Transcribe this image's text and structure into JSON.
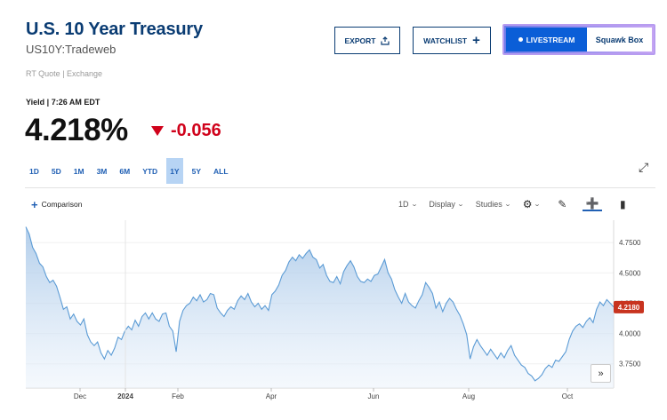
{
  "header": {
    "title": "U.S. 10 Year Treasury",
    "symbol": "US10Y:Tradeweb",
    "quote_source": "RT Quote | Exchange"
  },
  "actions": {
    "export_label": "EXPORT",
    "watchlist_label": "WATCHLIST",
    "livestream_label": "LIVESTREAM",
    "squawk_label": "Squawk Box"
  },
  "quote": {
    "yield_label": "Yield | 7:26 AM EDT",
    "price": "4.218%",
    "change": "-0.056",
    "change_color": "#d0021b"
  },
  "ranges": [
    "1D",
    "5D",
    "1M",
    "3M",
    "6M",
    "YTD",
    "1Y",
    "5Y",
    "ALL"
  ],
  "active_range": "1Y",
  "toolbar": {
    "comparison_label": "Comparison",
    "interval_label": "1D",
    "display_label": "Display",
    "studies_label": "Studies"
  },
  "chart_data": {
    "type": "area",
    "x_tick_labels": [
      "Dec",
      "2024",
      "Feb",
      "Apr",
      "Jun",
      "Aug",
      "Oct"
    ],
    "y_tick_labels": [
      "4.7500",
      "4.5000",
      "4.2500",
      "4.0000",
      "3.7500"
    ],
    "ylim": [
      3.55,
      4.92
    ],
    "last_value_label": "4.2180",
    "series": [
      {
        "color": "#5b9bd5",
        "values": [
          4.88,
          4.82,
          4.71,
          4.66,
          4.58,
          4.55,
          4.47,
          4.42,
          4.44,
          4.39,
          4.3,
          4.2,
          4.22,
          4.12,
          4.16,
          4.1,
          4.07,
          4.12,
          3.99,
          3.93,
          3.9,
          3.93,
          3.84,
          3.79,
          3.86,
          3.82,
          3.88,
          3.97,
          3.95,
          4.02,
          4.06,
          4.03,
          4.11,
          4.06,
          4.14,
          4.17,
          4.12,
          4.17,
          4.12,
          4.1,
          4.16,
          4.17,
          4.06,
          4.02,
          3.85,
          4.1,
          4.19,
          4.23,
          4.25,
          4.3,
          4.27,
          4.32,
          4.26,
          4.28,
          4.33,
          4.32,
          4.21,
          4.17,
          4.14,
          4.19,
          4.22,
          4.2,
          4.27,
          4.31,
          4.28,
          4.33,
          4.26,
          4.22,
          4.25,
          4.2,
          4.23,
          4.19,
          4.32,
          4.35,
          4.4,
          4.48,
          4.52,
          4.59,
          4.63,
          4.6,
          4.65,
          4.62,
          4.66,
          4.69,
          4.63,
          4.61,
          4.54,
          4.57,
          4.48,
          4.43,
          4.42,
          4.47,
          4.41,
          4.51,
          4.56,
          4.6,
          4.55,
          4.47,
          4.43,
          4.42,
          4.45,
          4.43,
          4.48,
          4.49,
          4.55,
          4.61,
          4.5,
          4.45,
          4.36,
          4.3,
          4.25,
          4.33,
          4.26,
          4.23,
          4.21,
          4.27,
          4.32,
          4.42,
          4.38,
          4.33,
          4.21,
          4.26,
          4.18,
          4.25,
          4.29,
          4.26,
          4.2,
          4.15,
          4.08,
          3.99,
          3.79,
          3.89,
          3.95,
          3.9,
          3.86,
          3.82,
          3.87,
          3.83,
          3.79,
          3.84,
          3.8,
          3.86,
          3.9,
          3.82,
          3.78,
          3.74,
          3.72,
          3.67,
          3.65,
          3.61,
          3.63,
          3.66,
          3.71,
          3.74,
          3.72,
          3.78,
          3.77,
          3.81,
          3.85,
          3.95,
          4.02,
          4.06,
          4.08,
          4.05,
          4.1,
          4.13,
          4.09,
          4.2,
          4.26,
          4.23,
          4.28,
          4.25,
          4.218
        ]
      }
    ]
  }
}
